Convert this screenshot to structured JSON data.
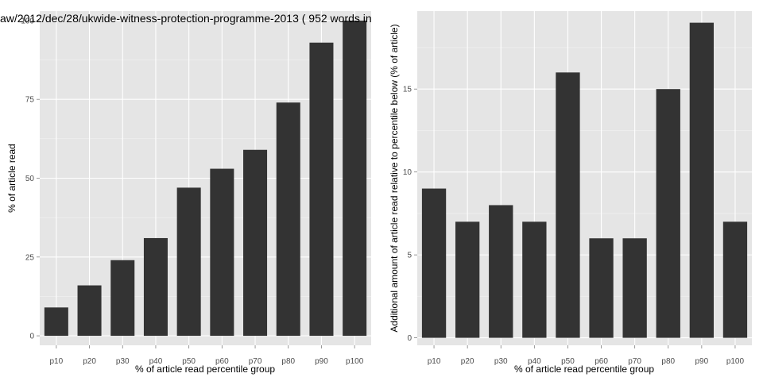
{
  "title": "aw/2012/dec/28/ukwide-witness-protection-programme-2013 ( 952 words in",
  "colors": {
    "panel": "#e5e5e5",
    "grid_major": "#ffffff",
    "grid_minor": "#f2f2f2",
    "bar": "#333333",
    "tick_text": "#4d4d4d"
  },
  "chart_data": [
    {
      "type": "bar",
      "categories": [
        "p10",
        "p20",
        "p30",
        "p40",
        "p50",
        "p60",
        "p70",
        "p80",
        "p90",
        "p100"
      ],
      "values": [
        9,
        16,
        24,
        31,
        47,
        53,
        59,
        74,
        93,
        100
      ],
      "xlabel": "% of article read percentile group",
      "ylabel": "% of article read",
      "ylim": [
        -3,
        103
      ],
      "yticks": [
        "0",
        "25",
        "50",
        "75",
        "100"
      ],
      "grid": true
    },
    {
      "type": "bar",
      "categories": [
        "p10",
        "p20",
        "p30",
        "p40",
        "p50",
        "p60",
        "p70",
        "p80",
        "p90",
        "p100"
      ],
      "values": [
        9,
        7,
        8,
        7,
        16,
        6,
        6,
        15,
        19,
        7
      ],
      "xlabel": "% of article read percentile group",
      "ylabel": "Additional amount of article read relative to percentile below (% of article)",
      "ylim": [
        -0.45,
        19.7
      ],
      "yticks": [
        "0",
        "5",
        "10",
        "15"
      ],
      "grid": true
    }
  ]
}
